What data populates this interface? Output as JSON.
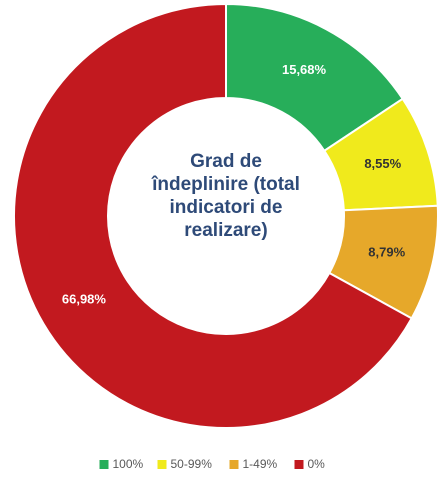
{
  "chart_data": {
    "type": "donut",
    "title": "Grad de îndeplinire (total indicatori de realizare)",
    "categories": [
      "100%",
      "50-99%",
      "1-49%",
      "0%"
    ],
    "values": [
      15.68,
      8.55,
      8.79,
      66.98
    ],
    "value_labels": [
      "15,68%",
      "8,55%",
      "8,79%",
      "66,98%"
    ],
    "colors": [
      "#27ae5a",
      "#f0ea1c",
      "#e6a82a",
      "#c2191f"
    ],
    "legend": "bottom"
  }
}
